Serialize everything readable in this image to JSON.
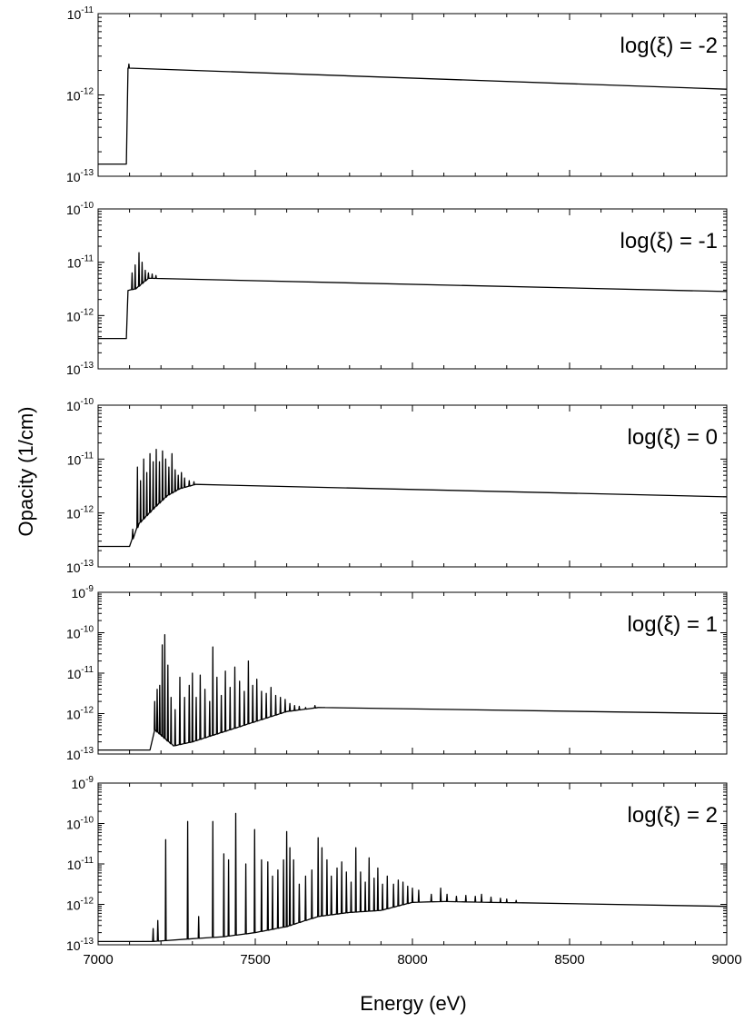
{
  "figure": {
    "ylabel": "Opacity (1/cm)",
    "xlabel": "Energy (eV)"
  },
  "chart_data": [
    {
      "type": "line",
      "annotation": "log(ξ) = -2",
      "xlim": [
        7000,
        9000
      ],
      "ylim_exponents": [
        -13,
        -11
      ],
      "y_scale": "log",
      "x_ticks": [
        7000,
        7500,
        8000,
        8500,
        9000
      ],
      "y_tick_labels": [
        {
          "base": "10",
          "exp": "-11"
        },
        {
          "base": "10",
          "exp": "-12"
        },
        {
          "base": "10",
          "exp": "-13"
        }
      ],
      "base_level_exponent": -12.85,
      "edge_energy": 7090,
      "continuum": [
        [
          7095,
          -11.67
        ],
        [
          9000,
          -11.93
        ]
      ],
      "lines": [
        [
          7098,
          -11.62
        ]
      ]
    },
    {
      "type": "line",
      "annotation": "log(ξ) = -1",
      "xlim": [
        7000,
        9000
      ],
      "ylim_exponents": [
        -13,
        -10
      ],
      "y_scale": "log",
      "x_ticks": [
        7000,
        7500,
        8000,
        8500,
        9000
      ],
      "y_tick_labels": [
        {
          "base": "10",
          "exp": "-10"
        },
        {
          "base": "10",
          "exp": "-11"
        },
        {
          "base": "10",
          "exp": "-12"
        },
        {
          "base": "10",
          "exp": "-13"
        }
      ],
      "base_level_exponent": -12.43,
      "edge_energy": 7090,
      "continuum": [
        [
          7095,
          -11.53
        ],
        [
          7120,
          -11.5
        ],
        [
          7160,
          -11.3
        ],
        [
          9000,
          -11.55
        ]
      ],
      "lines": [
        [
          7108,
          -11.2
        ],
        [
          7118,
          -11.05
        ],
        [
          7130,
          -10.82
        ],
        [
          7140,
          -11.0
        ],
        [
          7150,
          -11.15
        ],
        [
          7160,
          -11.2
        ],
        [
          7172,
          -11.22
        ],
        [
          7184,
          -11.25
        ]
      ]
    },
    {
      "type": "line",
      "annotation": "log(ξ) = 0",
      "xlim": [
        7000,
        9000
      ],
      "ylim_exponents": [
        -13,
        -10
      ],
      "y_scale": "log",
      "x_ticks": [
        7000,
        7500,
        8000,
        8500,
        9000
      ],
      "y_tick_labels": [
        {
          "base": "10",
          "exp": "-10"
        },
        {
          "base": "10",
          "exp": "-11"
        },
        {
          "base": "10",
          "exp": "-12"
        },
        {
          "base": "10",
          "exp": "-13"
        }
      ],
      "base_level_exponent": -12.62,
      "edge_energy": 7100,
      "continuum": [
        [
          7100,
          -12.62
        ],
        [
          7130,
          -12.2
        ],
        [
          7180,
          -11.9
        ],
        [
          7220,
          -11.68
        ],
        [
          7260,
          -11.55
        ],
        [
          7310,
          -11.47
        ],
        [
          9000,
          -11.7
        ]
      ],
      "lines": [
        [
          7110,
          -12.3
        ],
        [
          7125,
          -11.15
        ],
        [
          7135,
          -11.4
        ],
        [
          7145,
          -11.0
        ],
        [
          7155,
          -11.25
        ],
        [
          7165,
          -10.9
        ],
        [
          7175,
          -11.05
        ],
        [
          7185,
          -10.82
        ],
        [
          7195,
          -11.05
        ],
        [
          7205,
          -10.85
        ],
        [
          7215,
          -11.0
        ],
        [
          7225,
          -11.15
        ],
        [
          7235,
          -10.9
        ],
        [
          7245,
          -11.2
        ],
        [
          7255,
          -11.3
        ],
        [
          7265,
          -11.25
        ],
        [
          7275,
          -11.35
        ],
        [
          7290,
          -11.4
        ],
        [
          7305,
          -11.42
        ]
      ]
    },
    {
      "type": "line",
      "annotation": "log(ξ) = 1",
      "xlim": [
        7000,
        9000
      ],
      "ylim_exponents": [
        -13,
        -9
      ],
      "y_scale": "log",
      "x_ticks": [
        7000,
        7500,
        8000,
        8500,
        9000
      ],
      "y_tick_labels": [
        {
          "base": "10",
          "exp": "-9"
        },
        {
          "base": "10",
          "exp": "-10"
        },
        {
          "base": "10",
          "exp": "-11"
        },
        {
          "base": "10",
          "exp": "-12"
        },
        {
          "base": "10",
          "exp": "-13"
        }
      ],
      "base_level_exponent": -12.9,
      "edge_energy": 7165,
      "continuum": [
        [
          7165,
          -12.9
        ],
        [
          7180,
          -12.4
        ],
        [
          7240,
          -12.8
        ],
        [
          7300,
          -12.7
        ],
        [
          7400,
          -12.45
        ],
        [
          7500,
          -12.2
        ],
        [
          7600,
          -11.95
        ],
        [
          7700,
          -11.85
        ],
        [
          9000,
          -12.0
        ]
      ],
      "lines": [
        [
          7180,
          -11.7
        ],
        [
          7188,
          -11.4
        ],
        [
          7196,
          -11.3
        ],
        [
          7204,
          -10.3
        ],
        [
          7212,
          -10.05
        ],
        [
          7222,
          -10.8
        ],
        [
          7232,
          -11.6
        ],
        [
          7245,
          -11.9
        ],
        [
          7260,
          -11.1
        ],
        [
          7275,
          -11.6
        ],
        [
          7290,
          -11.3
        ],
        [
          7300,
          -11.0
        ],
        [
          7312,
          -11.6
        ],
        [
          7325,
          -11.05
        ],
        [
          7340,
          -11.4
        ],
        [
          7355,
          -11.7
        ],
        [
          7365,
          -10.35
        ],
        [
          7378,
          -11.1
        ],
        [
          7392,
          -11.55
        ],
        [
          7405,
          -10.95
        ],
        [
          7420,
          -11.35
        ],
        [
          7435,
          -10.85
        ],
        [
          7450,
          -11.2
        ],
        [
          7465,
          -11.45
        ],
        [
          7478,
          -10.7
        ],
        [
          7492,
          -11.3
        ],
        [
          7505,
          -11.15
        ],
        [
          7520,
          -11.45
        ],
        [
          7535,
          -11.5
        ],
        [
          7550,
          -11.35
        ],
        [
          7565,
          -11.55
        ],
        [
          7580,
          -11.6
        ],
        [
          7595,
          -11.65
        ],
        [
          7610,
          -11.75
        ],
        [
          7625,
          -11.8
        ],
        [
          7640,
          -11.82
        ],
        [
          7660,
          -11.85
        ],
        [
          7690,
          -11.8
        ],
        [
          7720,
          -11.85
        ]
      ]
    },
    {
      "type": "line",
      "annotation": "log(ξ) = 2",
      "xlim": [
        7000,
        9000
      ],
      "ylim_exponents": [
        -13,
        -9
      ],
      "y_scale": "log",
      "x_ticks": [
        7000,
        7500,
        8000,
        8500,
        9000
      ],
      "y_tick_labels": [
        {
          "base": "10",
          "exp": "-9"
        },
        {
          "base": "10",
          "exp": "-10"
        },
        {
          "base": "10",
          "exp": "-11"
        },
        {
          "base": "10",
          "exp": "-12"
        },
        {
          "base": "10",
          "exp": "-13"
        }
      ],
      "base_level_exponent": -12.92,
      "edge_energy": 7170,
      "continuum": [
        [
          7170,
          -12.92
        ],
        [
          7300,
          -12.85
        ],
        [
          7400,
          -12.8
        ],
        [
          7500,
          -12.7
        ],
        [
          7600,
          -12.55
        ],
        [
          7700,
          -12.3
        ],
        [
          7800,
          -12.2
        ],
        [
          7900,
          -12.15
        ],
        [
          8000,
          -11.95
        ],
        [
          8100,
          -11.93
        ],
        [
          9000,
          -12.05
        ]
      ],
      "lines": [
        [
          7175,
          -12.6
        ],
        [
          7190,
          -12.4
        ],
        [
          7215,
          -10.4
        ],
        [
          7285,
          -9.95
        ],
        [
          7320,
          -12.3
        ],
        [
          7365,
          -9.95
        ],
        [
          7400,
          -10.75
        ],
        [
          7415,
          -10.9
        ],
        [
          7438,
          -9.75
        ],
        [
          7470,
          -11.0
        ],
        [
          7498,
          -10.15
        ],
        [
          7520,
          -10.9
        ],
        [
          7540,
          -10.95
        ],
        [
          7555,
          -11.3
        ],
        [
          7572,
          -11.15
        ],
        [
          7590,
          -10.9
        ],
        [
          7600,
          -10.2
        ],
        [
          7610,
          -10.6
        ],
        [
          7622,
          -10.9
        ],
        [
          7640,
          -11.5
        ],
        [
          7660,
          -11.3
        ],
        [
          7680,
          -11.15
        ],
        [
          7700,
          -10.35
        ],
        [
          7712,
          -10.6
        ],
        [
          7728,
          -10.9
        ],
        [
          7742,
          -11.3
        ],
        [
          7760,
          -11.1
        ],
        [
          7775,
          -10.95
        ],
        [
          7790,
          -11.2
        ],
        [
          7805,
          -11.45
        ],
        [
          7820,
          -10.6
        ],
        [
          7835,
          -11.2
        ],
        [
          7850,
          -11.45
        ],
        [
          7862,
          -10.85
        ],
        [
          7878,
          -11.35
        ],
        [
          7890,
          -11.1
        ],
        [
          7905,
          -11.5
        ],
        [
          7920,
          -11.3
        ],
        [
          7940,
          -11.5
        ],
        [
          7955,
          -11.4
        ],
        [
          7970,
          -11.45
        ],
        [
          7985,
          -11.55
        ],
        [
          8000,
          -11.6
        ],
        [
          8020,
          -11.65
        ],
        [
          8060,
          -11.75
        ],
        [
          8090,
          -11.6
        ],
        [
          8110,
          -11.75
        ],
        [
          8140,
          -11.8
        ],
        [
          8170,
          -11.78
        ],
        [
          8200,
          -11.8
        ],
        [
          8220,
          -11.75
        ],
        [
          8250,
          -11.82
        ],
        [
          8280,
          -11.85
        ],
        [
          8300,
          -11.87
        ],
        [
          8330,
          -11.9
        ]
      ]
    }
  ]
}
